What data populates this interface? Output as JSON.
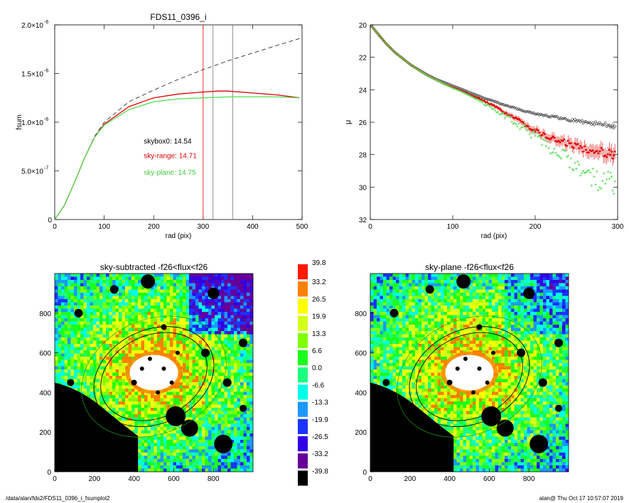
{
  "chart_data": [
    {
      "type": "line",
      "title": "FDS11_0396_i",
      "xlabel": "rad (pix)",
      "ylabel": "fsum",
      "xlim": [
        0,
        500
      ],
      "ylim": [
        0,
        2e-06
      ],
      "x_ticks": [
        0,
        100,
        200,
        300,
        400,
        500
      ],
      "x_tick_labels": [
        "0",
        "100",
        "200",
        "300",
        "400",
        "500"
      ],
      "y_ticks": [
        0,
        5e-07,
        1e-06,
        1.5e-06,
        2e-06
      ],
      "y_tick_labels": [
        {
          "mant": "0",
          "exp": ""
        },
        {
          "mant": "5.0×10",
          "exp": "-7"
        },
        {
          "mant": "1.0×10",
          "exp": "-6"
        },
        {
          "mant": "1.5×10",
          "exp": "-6"
        },
        {
          "mant": "2.0×10",
          "exp": "-6"
        }
      ],
      "series": [
        {
          "color": "#333333",
          "dash": true,
          "x": [
            0,
            20,
            40,
            60,
            80,
            100,
            150,
            200,
            250,
            300,
            350,
            400,
            450,
            495
          ],
          "y": [
            0,
            1.5e-07,
            3.8e-07,
            6.3e-07,
            8.5e-07,
            1e-06,
            1.21e-06,
            1.33e-06,
            1.44e-06,
            1.54e-06,
            1.63e-06,
            1.71e-06,
            1.79e-06,
            1.86e-06
          ]
        },
        {
          "color": "#e00000",
          "dash": false,
          "x": [
            0,
            20,
            40,
            60,
            80,
            100,
            150,
            200,
            250,
            300,
            330,
            350,
            400,
            450,
            495
          ],
          "y": [
            0,
            1.5e-07,
            3.8e-07,
            6.3e-07,
            8.4e-07,
            9.8e-07,
            1.16e-06,
            1.25e-06,
            1.29e-06,
            1.31e-06,
            1.32e-06,
            1.32e-06,
            1.3e-06,
            1.28e-06,
            1.25e-06
          ]
        },
        {
          "color": "#55dd55",
          "dash": false,
          "x": [
            0,
            20,
            40,
            60,
            80,
            100,
            150,
            200,
            250,
            300,
            350,
            400,
            450,
            495
          ],
          "y": [
            0,
            1.5e-07,
            3.8e-07,
            6.3e-07,
            8.4e-07,
            9.7e-07,
            1.13e-06,
            1.21e-06,
            1.24e-06,
            1.25e-06,
            1.26e-06,
            1.26e-06,
            1.26e-06,
            1.25e-06
          ]
        }
      ],
      "vlines": [
        {
          "x": 300,
          "color": "#e00000"
        },
        {
          "x": 320,
          "color": "#777777"
        },
        {
          "x": 360,
          "color": "#777777"
        }
      ],
      "annotations": [
        {
          "text": "skybox0: 14.54",
          "color": "#000000",
          "x": 180,
          "y": 7.8e-07
        },
        {
          "text": "sky-range: 14.71",
          "color": "#e00000",
          "x": 180,
          "y": 6.3e-07
        },
        {
          "text": "sky-plane: 14.75",
          "color": "#44cc44",
          "x": 180,
          "y": 4.6e-07
        }
      ]
    },
    {
      "type": "scatter",
      "title": "",
      "xlabel": "rad (pix)",
      "ylabel": "μ",
      "xlim": [
        0,
        300
      ],
      "ylim": [
        32,
        20
      ],
      "x_ticks": [
        0,
        100,
        200,
        300
      ],
      "x_tick_labels": [
        "0",
        "100",
        "200",
        "300"
      ],
      "y_ticks": [
        20,
        22,
        24,
        26,
        28,
        30,
        32
      ],
      "y_tick_labels": [
        "20",
        "22",
        "24",
        "26",
        "28",
        "30",
        "32"
      ],
      "series": [
        {
          "color": "#333333",
          "marker": "circle",
          "x": [
            2,
            10,
            20,
            30,
            40,
            50,
            60,
            70,
            80,
            90,
            100,
            110,
            120,
            130,
            140,
            150,
            160,
            170,
            180,
            190,
            200,
            210,
            220,
            230,
            240,
            250,
            260,
            270,
            280,
            290,
            298
          ],
          "y": [
            20.1,
            20.6,
            21.2,
            21.7,
            22.1,
            22.5,
            22.8,
            23.1,
            23.35,
            23.55,
            23.75,
            23.95,
            24.15,
            24.35,
            24.55,
            24.7,
            24.9,
            25.05,
            25.2,
            25.35,
            25.45,
            25.55,
            25.65,
            25.75,
            25.85,
            25.9,
            26.0,
            26.05,
            26.1,
            26.2,
            26.3
          ]
        },
        {
          "color": "#e00000",
          "marker": "errorbar",
          "x": [
            2,
            10,
            20,
            30,
            40,
            50,
            60,
            70,
            80,
            90,
            100,
            110,
            120,
            130,
            140,
            150,
            160,
            170,
            180,
            190,
            200,
            210,
            220,
            230,
            240,
            250,
            260,
            270,
            280,
            290,
            298
          ],
          "y": [
            20.1,
            20.6,
            21.2,
            21.7,
            22.1,
            22.5,
            22.85,
            23.15,
            23.4,
            23.65,
            23.85,
            24.05,
            24.3,
            24.5,
            24.75,
            25.0,
            25.3,
            25.6,
            25.9,
            26.2,
            26.5,
            26.8,
            27.0,
            27.2,
            27.3,
            27.5,
            27.6,
            27.7,
            27.8,
            27.9,
            28.0
          ]
        },
        {
          "color": "#55dd55",
          "marker": "star",
          "x": [
            2,
            10,
            20,
            30,
            40,
            50,
            60,
            70,
            80,
            90,
            100,
            110,
            120,
            130,
            140,
            150,
            160,
            170,
            180,
            190,
            200,
            210,
            220,
            230,
            240,
            250,
            260,
            270,
            280,
            290,
            298
          ],
          "y": [
            20.1,
            20.6,
            21.2,
            21.7,
            22.1,
            22.5,
            22.85,
            23.15,
            23.4,
            23.65,
            23.9,
            24.1,
            24.35,
            24.6,
            24.9,
            25.2,
            25.5,
            25.8,
            26.2,
            26.5,
            26.9,
            27.3,
            27.6,
            28.0,
            28.3,
            28.7,
            29.0,
            29.4,
            29.8,
            29.5,
            30.0
          ]
        }
      ]
    },
    {
      "type": "heatmap",
      "title": "sky-subtracted -f26<flux<f26",
      "xlim": [
        0,
        1000
      ],
      "ylim": [
        0,
        1000
      ],
      "x_ticks": [
        0,
        200,
        400,
        600,
        800
      ],
      "x_tick_labels": [
        "0",
        "200",
        "400",
        "600",
        "800"
      ],
      "y_ticks": [
        0,
        200,
        400,
        600,
        800
      ],
      "y_tick_labels": [
        "0",
        "200",
        "400",
        "600",
        "800"
      ]
    },
    {
      "type": "heatmap",
      "title": "sky-plane -f26<flux<f26",
      "xlim": [
        0,
        1000
      ],
      "ylim": [
        0,
        1000
      ],
      "x_ticks": [
        0,
        200,
        400,
        600,
        800
      ],
      "x_tick_labels": [
        "0",
        "200",
        "400",
        "600",
        "800"
      ],
      "y_ticks": [
        0,
        200,
        400,
        600,
        800
      ],
      "y_tick_labels": [
        "0",
        "200",
        "400",
        "600",
        "800"
      ]
    }
  ],
  "colorbar": {
    "labels": [
      "39.8",
      "33.2",
      "26.5",
      "19.9",
      "13.3",
      "6.6",
      "0.0",
      "-6.6",
      "-13.3",
      "-19.9",
      "-26.5",
      "-33.2",
      "-39.8"
    ],
    "colors": [
      "#ff1a00",
      "#ff8000",
      "#ffff00",
      "#d4ff1a",
      "#80ff00",
      "#1aff1a",
      "#1aff80",
      "#00ffe6",
      "#1a99ff",
      "#1a33ff",
      "#3300e6",
      "#660099",
      "#000000"
    ]
  },
  "footer": {
    "path": "/data/alan/fds2/FDS11_0396_i_fsumplot2",
    "stamp": "alan@  Thu Oct 17 10:57:07 2019"
  }
}
